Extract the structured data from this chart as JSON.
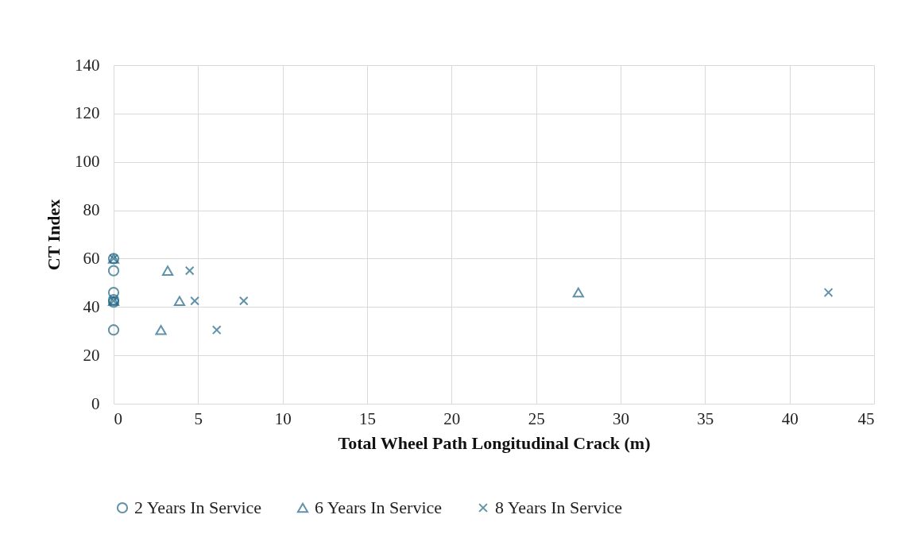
{
  "chart_data": {
    "type": "scatter",
    "xlabel": "Total Wheel Path Longitudinal Crack (m)",
    "ylabel": "CT Index",
    "xlim": [
      0,
      45
    ],
    "xticks": [
      0,
      5,
      10,
      15,
      20,
      25,
      30,
      35,
      40,
      45
    ],
    "ylim": [
      0,
      140
    ],
    "yticks": [
      0,
      20,
      40,
      60,
      80,
      100,
      120,
      140
    ],
    "grid": true,
    "legend": "bottom",
    "series": [
      {
        "name": "2 Years In Service",
        "color": "#1f6585",
        "marker": "circle",
        "x": [
          0,
          0,
          0,
          0,
          0,
          0
        ],
        "values": [
          60,
          55,
          46,
          43,
          42,
          30.5
        ]
      },
      {
        "name": "6 Years In Service",
        "color": "#1f6585",
        "marker": "triangle",
        "x": [
          0,
          0,
          3.2,
          3.9,
          2.8,
          27.5
        ],
        "values": [
          60,
          42.5,
          55,
          42.5,
          30.5,
          46
        ]
      },
      {
        "name": "8 Years In Service",
        "color": "#1f6585",
        "marker": "cross",
        "x": [
          0,
          0,
          4.5,
          4.8,
          7.7,
          6.1,
          42.3
        ],
        "values": [
          60,
          42.5,
          55,
          42.5,
          42.5,
          30.5,
          46
        ]
      }
    ]
  }
}
